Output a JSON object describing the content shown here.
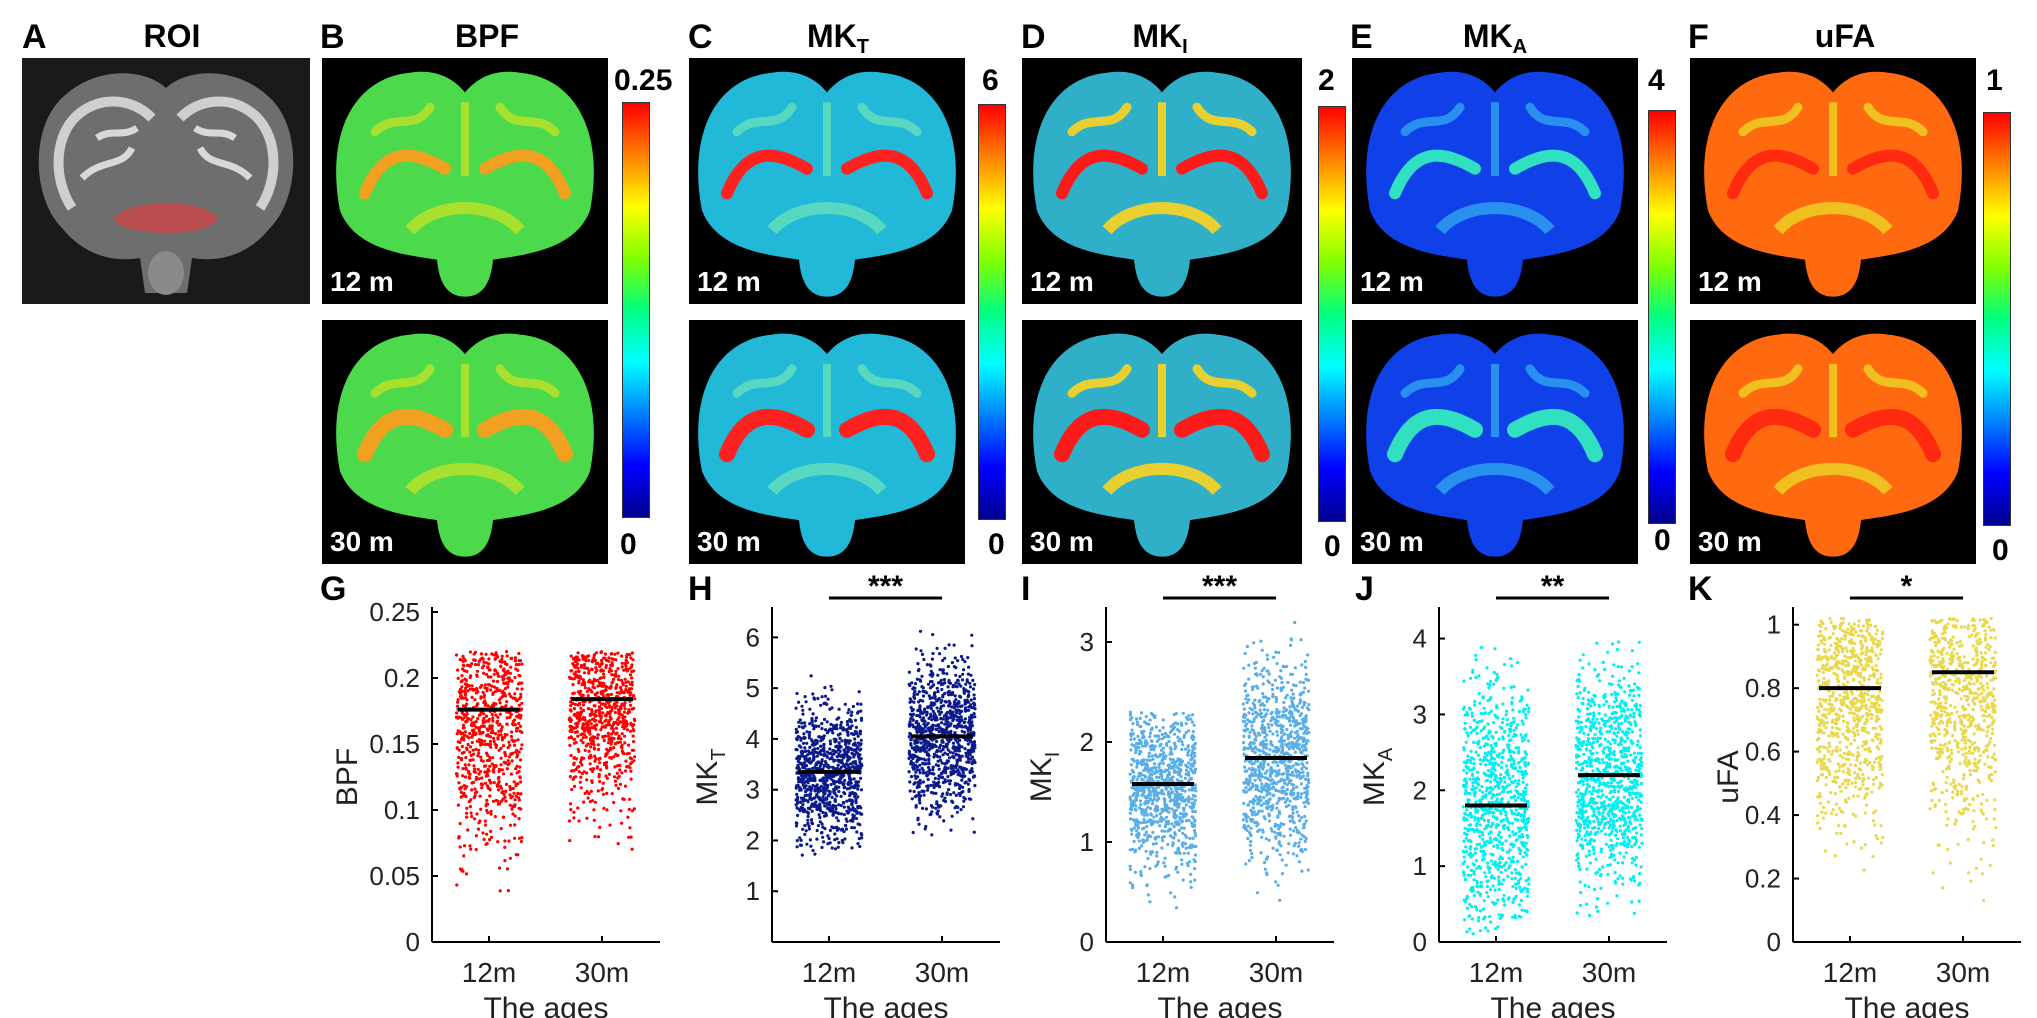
{
  "panel_A": {
    "label": "A",
    "title": "ROI"
  },
  "map_panels": [
    {
      "label": "B",
      "title": "BPF",
      "sub": "",
      "cb_max": "0.25",
      "cb_min": "0",
      "top_age": "12 m",
      "bottom_age": "30 m"
    },
    {
      "label": "C",
      "title": "MK",
      "sub": "T",
      "cb_max": "6",
      "cb_min": "0",
      "top_age": "12 m",
      "bottom_age": "30 m"
    },
    {
      "label": "D",
      "title": "MK",
      "sub": "I",
      "cb_max": "2",
      "cb_min": "0",
      "top_age": "12 m",
      "bottom_age": "30 m"
    },
    {
      "label": "E",
      "title": "MK",
      "sub": "A",
      "cb_max": "4",
      "cb_min": "0",
      "top_age": "12 m",
      "bottom_age": "30 m"
    },
    {
      "label": "F",
      "title": "uFA",
      "sub": "",
      "cb_max": "1",
      "cb_min": "0",
      "top_age": "12 m",
      "bottom_age": "30 m"
    }
  ],
  "chart_data": [
    {
      "panel": "G",
      "type": "scatter",
      "ylabel": "BPF",
      "ylabel_sub": "",
      "xlabel": "The ages",
      "categories": [
        "12m",
        "30m"
      ],
      "ylim": [
        0,
        0.25
      ],
      "yticks": [
        "0",
        "0.05",
        "0.1",
        "0.15",
        "0.2",
        "0.25"
      ],
      "color": "#ff0000",
      "means": [
        0.176,
        0.184
      ],
      "ranges": [
        [
          0.02,
          0.22
        ],
        [
          0.06,
          0.22
        ]
      ],
      "significance": ""
    },
    {
      "panel": "H",
      "type": "scatter",
      "ylabel": "MK",
      "ylabel_sub": "T",
      "xlabel": "The ages",
      "categories": [
        "12m",
        "30m"
      ],
      "ylim": [
        0,
        6.5
      ],
      "yticks": [
        "1",
        "2",
        "3",
        "4",
        "5",
        "6"
      ],
      "color": "#0a1a8c",
      "means": [
        3.35,
        4.05
      ],
      "ranges": [
        [
          1.7,
          5.4
        ],
        [
          1.95,
          6.35
        ]
      ],
      "significance": "***"
    },
    {
      "panel": "I",
      "type": "scatter",
      "ylabel": "MK",
      "ylabel_sub": "I",
      "xlabel": "The ages",
      "categories": [
        "12m",
        "30m"
      ],
      "ylim": [
        0,
        3.3
      ],
      "yticks": [
        "0",
        "1",
        "2",
        "3"
      ],
      "color": "#5aaee6",
      "means": [
        1.58,
        1.84
      ],
      "ranges": [
        [
          0.2,
          2.3
        ],
        [
          0.4,
          3.3
        ]
      ],
      "significance": "***"
    },
    {
      "panel": "J",
      "type": "scatter",
      "ylabel": "MK",
      "ylabel_sub": "A",
      "xlabel": "The ages",
      "categories": [
        "12m",
        "30m"
      ],
      "ylim": [
        0,
        4.35
      ],
      "yticks": [
        "0",
        "1",
        "2",
        "3",
        "4"
      ],
      "color": "#00f0f0",
      "means": [
        1.8,
        2.2
      ],
      "ranges": [
        [
          0.1,
          4.25
        ],
        [
          0.05,
          4.35
        ]
      ],
      "significance": "**"
    },
    {
      "panel": "K",
      "type": "scatter",
      "ylabel": "uFA",
      "ylabel_sub": "",
      "xlabel": "The ages",
      "categories": [
        "12m",
        "30m"
      ],
      "ylim": [
        0,
        1.04
      ],
      "yticks": [
        "0",
        "0.2",
        "0.4",
        "0.6",
        "0.8",
        "1"
      ],
      "color": "#e8d84a",
      "means": [
        0.8,
        0.85
      ],
      "ranges": [
        [
          0.18,
          1.02
        ],
        [
          0.09,
          1.02
        ]
      ],
      "significance": "*"
    }
  ]
}
